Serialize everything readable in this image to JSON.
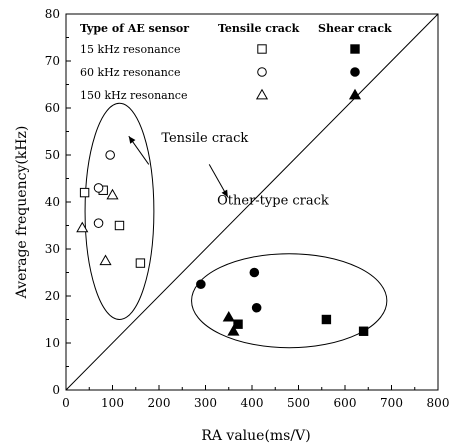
{
  "chart_data": {
    "type": "scatter",
    "xlabel": "RA value(ms/V)",
    "ylabel": "Average frequency(kHz)",
    "xlim": [
      0,
      800
    ],
    "ylim": [
      0,
      80
    ],
    "xticks": [
      "0",
      "100",
      "200",
      "300",
      "400",
      "500",
      "600",
      "700",
      "800"
    ],
    "yticks": [
      "0",
      "10",
      "20",
      "30",
      "40",
      "50",
      "60",
      "70",
      "80"
    ],
    "grid": false,
    "legend": {
      "placement": "top-left",
      "header_sensor": "Type of AE sensor",
      "header_tensile": "Tensile crack",
      "header_shear": "Shear crack",
      "rows": [
        {
          "label": "15 kHz resonance",
          "marker": "square"
        },
        {
          "label": "60 kHz resonance",
          "marker": "circle"
        },
        {
          "label": "150 kHz resonance",
          "marker": "triangle"
        }
      ]
    },
    "divider_line": {
      "from": [
        0,
        0
      ],
      "to": [
        800,
        80
      ]
    },
    "annotations": [
      {
        "text": "Tensile crack",
        "x": 205,
        "y": 52.8,
        "arrow_from": [
          178,
          48
        ],
        "arrow_to": [
          135,
          54
        ]
      },
      {
        "text": "Other-type crack",
        "x": 325,
        "y": 39.5,
        "arrow_from": [
          308,
          48
        ],
        "arrow_to": [
          348,
          41
        ]
      }
    ],
    "clusters": [
      {
        "cx": 115,
        "cy": 38,
        "rx": 74,
        "ry": 23
      },
      {
        "cx": 480,
        "cy": 19,
        "rx": 210,
        "ry": 10
      }
    ],
    "series": [
      {
        "name": "15 kHz resonance",
        "crack": "tensile",
        "marker": "square",
        "filled": false,
        "points": [
          [
            40,
            42
          ],
          [
            80,
            42.5
          ],
          [
            115,
            35
          ],
          [
            160,
            27
          ]
        ]
      },
      {
        "name": "60 kHz resonance",
        "crack": "tensile",
        "marker": "circle",
        "filled": false,
        "points": [
          [
            95,
            50
          ],
          [
            70,
            43
          ],
          [
            70,
            35.5
          ]
        ]
      },
      {
        "name": "150 kHz resonance",
        "crack": "tensile",
        "marker": "triangle",
        "filled": false,
        "points": [
          [
            100,
            41.5
          ],
          [
            35,
            34.5
          ],
          [
            85,
            27.5
          ]
        ]
      },
      {
        "name": "15 kHz resonance",
        "crack": "shear",
        "marker": "square",
        "filled": true,
        "points": [
          [
            370,
            14
          ],
          [
            560,
            15
          ],
          [
            640,
            12.5
          ]
        ]
      },
      {
        "name": "60 kHz resonance",
        "crack": "shear",
        "marker": "circle",
        "filled": true,
        "points": [
          [
            290,
            22.5
          ],
          [
            405,
            25
          ],
          [
            410,
            17.5
          ]
        ]
      },
      {
        "name": "150 kHz resonance",
        "crack": "shear",
        "marker": "triangle",
        "filled": true,
        "points": [
          [
            350,
            15.5
          ],
          [
            360,
            12.5
          ]
        ]
      }
    ]
  }
}
